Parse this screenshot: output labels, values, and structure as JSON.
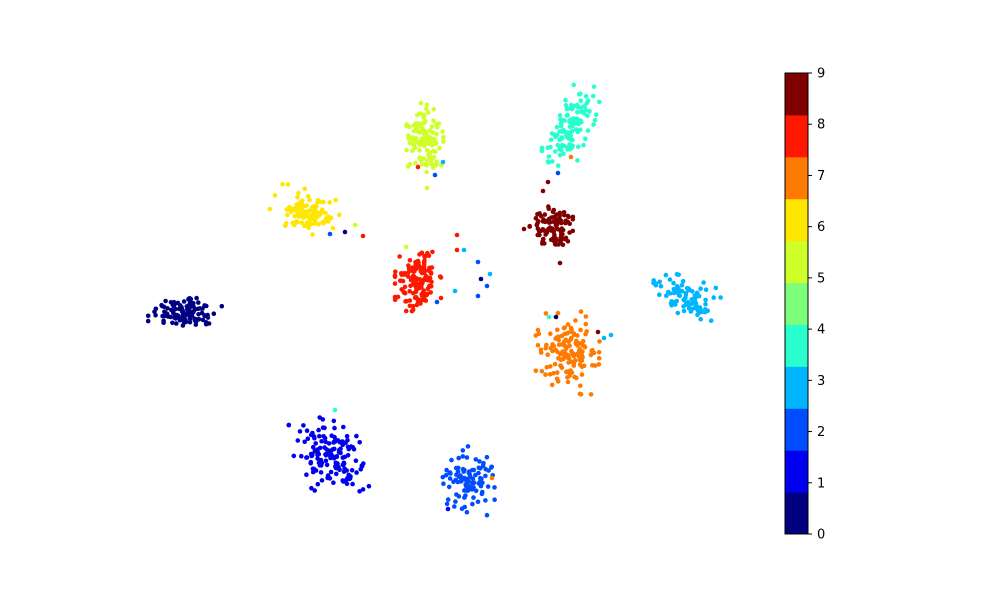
{
  "chart_data": {
    "type": "scatter",
    "title": "",
    "xlabel": "",
    "ylabel": "",
    "axes_visible": false,
    "grid": false,
    "legend": "none",
    "colorbar": {
      "position": "right",
      "range": [
        0,
        9
      ],
      "ticks": [
        "0",
        "1",
        "2",
        "3",
        "4",
        "5",
        "6",
        "7",
        "8",
        "9"
      ],
      "colors": [
        "#000080",
        "#0000f1",
        "#004dff",
        "#00b5ff",
        "#29ffce",
        "#7dff7a",
        "#ceff29",
        "#ffe600",
        "#ff7a00",
        "#ff1800",
        "#800000"
      ]
    },
    "note": "t-SNE style embedding; 10 clusters, approx. 60-110 points each",
    "series": [
      {
        "label": "0",
        "color": "#000080",
        "center": [
          185,
          312
        ],
        "spread": [
          16,
          8
        ],
        "angle": 0.0,
        "count": 110
      },
      {
        "label": "1",
        "color": "#0000f1",
        "center": [
          330,
          455
        ],
        "spread": [
          14,
          20
        ],
        "angle": -0.5,
        "count": 150
      },
      {
        "label": "2",
        "color": "#004dff",
        "center": [
          470,
          482
        ],
        "spread": [
          12,
          15
        ],
        "angle": 0.2,
        "count": 100
      },
      {
        "label": "3",
        "color": "#00b5ff",
        "center": [
          685,
          296
        ],
        "spread": [
          15,
          8
        ],
        "angle": 0.3,
        "count": 90
      },
      {
        "label": "4",
        "color": "#29ffce",
        "center": [
          572,
          127
        ],
        "spread": [
          9,
          20
        ],
        "angle": 0.5,
        "count": 120
      },
      {
        "label": "5",
        "color": "#ceff29",
        "center": [
          425,
          140
        ],
        "spread": [
          8,
          16
        ],
        "angle": 0.0,
        "count": 110
      },
      {
        "label": "6",
        "color": "#ffe600",
        "center": [
          308,
          212
        ],
        "spread": [
          16,
          9
        ],
        "angle": 0.35,
        "count": 100
      },
      {
        "label": "7",
        "color": "#ff7a00",
        "center": [
          568,
          353
        ],
        "spread": [
          14,
          18
        ],
        "angle": 0.0,
        "count": 140
      },
      {
        "label": "8",
        "color": "#ff1800",
        "center": [
          418,
          280
        ],
        "spread": [
          10,
          15
        ],
        "angle": 0.0,
        "count": 140
      },
      {
        "label": "9",
        "color": "#800000",
        "center": [
          555,
          228
        ],
        "spread": [
          11,
          10
        ],
        "angle": 0.0,
        "count": 100
      }
    ],
    "outliers": [
      {
        "x": 345,
        "y": 232,
        "color": "#000080"
      },
      {
        "x": 363,
        "y": 236,
        "color": "#ff1800"
      },
      {
        "x": 330,
        "y": 234,
        "color": "#004dff"
      },
      {
        "x": 355,
        "y": 225,
        "color": "#ceff29"
      },
      {
        "x": 418,
        "y": 167,
        "color": "#ff1800"
      },
      {
        "x": 435,
        "y": 175,
        "color": "#004dff"
      },
      {
        "x": 443,
        "y": 162,
        "color": "#00b5ff"
      },
      {
        "x": 427,
        "y": 188,
        "color": "#ceff29"
      },
      {
        "x": 457,
        "y": 235,
        "color": "#ff1800"
      },
      {
        "x": 457,
        "y": 250,
        "color": "#ff1800"
      },
      {
        "x": 464,
        "y": 250,
        "color": "#00b5ff"
      },
      {
        "x": 478,
        "y": 262,
        "color": "#004dff"
      },
      {
        "x": 481,
        "y": 279,
        "color": "#000080"
      },
      {
        "x": 490,
        "y": 274,
        "color": "#00b5ff"
      },
      {
        "x": 487,
        "y": 286,
        "color": "#004dff"
      },
      {
        "x": 478,
        "y": 296,
        "color": "#004dff"
      },
      {
        "x": 455,
        "y": 291,
        "color": "#00b5ff"
      },
      {
        "x": 441,
        "y": 298,
        "color": "#ff1800"
      },
      {
        "x": 437,
        "y": 302,
        "color": "#004dff"
      },
      {
        "x": 406,
        "y": 247,
        "color": "#ceff29"
      },
      {
        "x": 558,
        "y": 173,
        "color": "#004dff"
      },
      {
        "x": 571,
        "y": 157,
        "color": "#ff7a00"
      },
      {
        "x": 548,
        "y": 182,
        "color": "#800000"
      },
      {
        "x": 543,
        "y": 191,
        "color": "#800000"
      },
      {
        "x": 524,
        "y": 229,
        "color": "#800000"
      },
      {
        "x": 560,
        "y": 263,
        "color": "#800000"
      },
      {
        "x": 549,
        "y": 317,
        "color": "#29ffce"
      },
      {
        "x": 556,
        "y": 317,
        "color": "#000080"
      },
      {
        "x": 538,
        "y": 330,
        "color": "#ff7a00"
      },
      {
        "x": 598,
        "y": 332,
        "color": "#800000"
      },
      {
        "x": 604,
        "y": 338,
        "color": "#00b5ff"
      },
      {
        "x": 611,
        "y": 335,
        "color": "#00b5ff"
      },
      {
        "x": 335,
        "y": 410,
        "color": "#29ffce"
      },
      {
        "x": 448,
        "y": 509,
        "color": "#0000f1"
      },
      {
        "x": 492,
        "y": 478,
        "color": "#ff7a00"
      }
    ]
  }
}
